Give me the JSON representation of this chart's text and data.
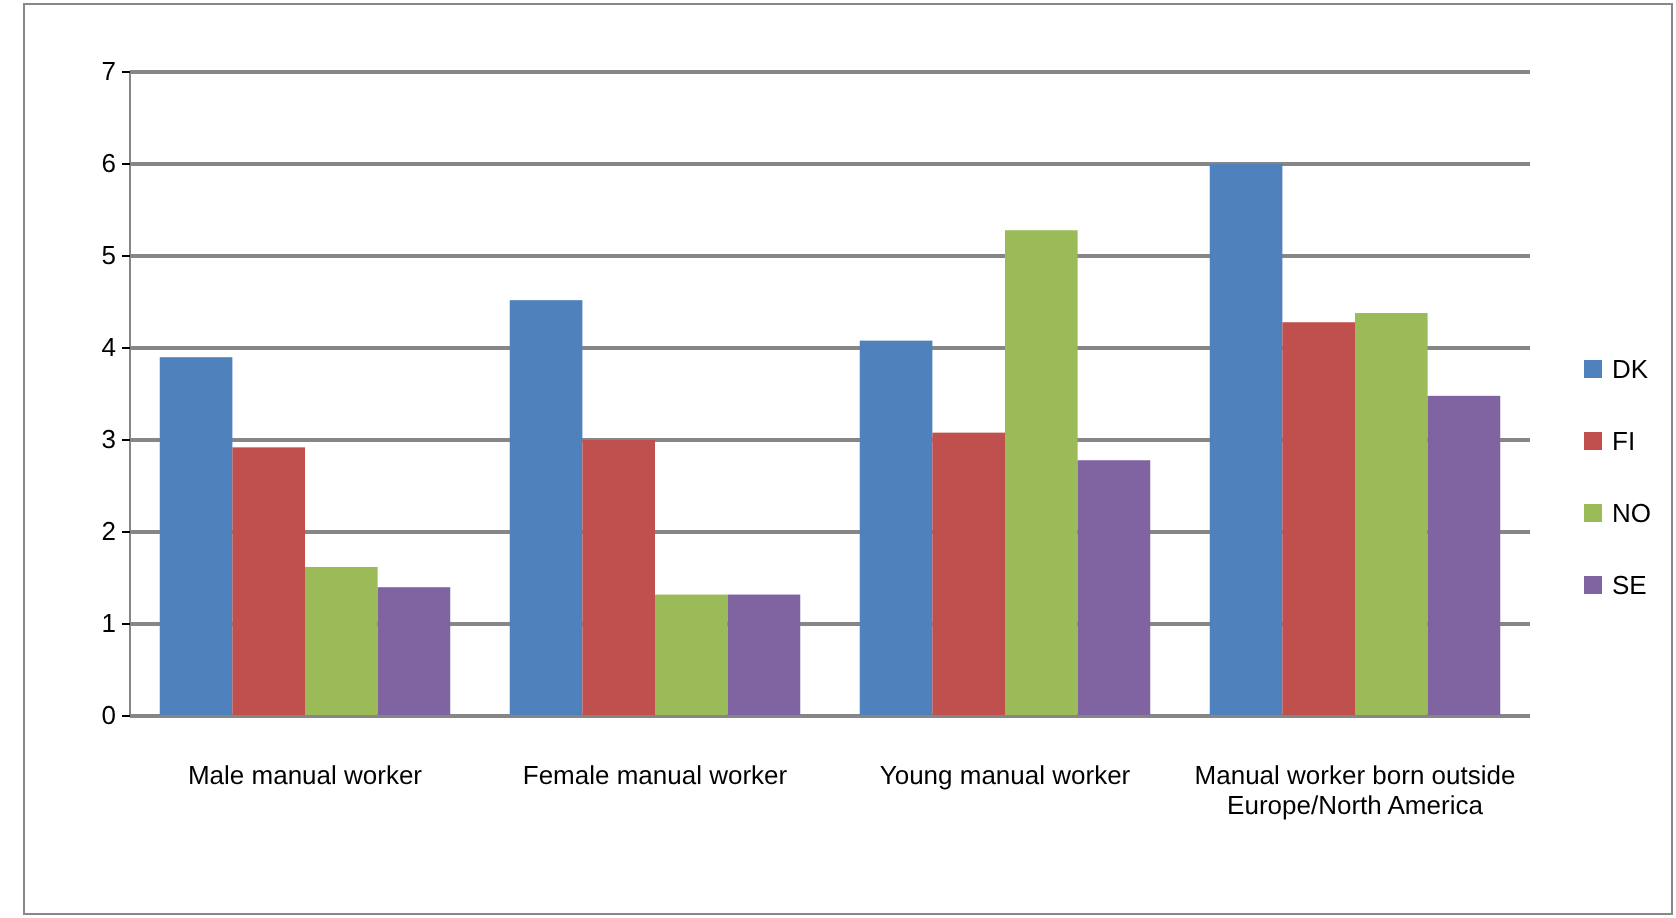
{
  "chart_data": {
    "type": "bar",
    "categories": [
      "Male manual worker",
      "Female manual worker",
      "Young manual worker",
      "Manual worker born outside Europe/North America"
    ],
    "series": [
      {
        "name": "DK",
        "color": "#4f81bd",
        "values": [
          3.9,
          4.52,
          4.08,
          6.0
        ]
      },
      {
        "name": "FI",
        "color": "#c0504d",
        "values": [
          2.92,
          3.0,
          3.08,
          4.28
        ]
      },
      {
        "name": "NO",
        "color": "#9bbb59",
        "values": [
          1.62,
          1.32,
          5.28,
          4.38
        ]
      },
      {
        "name": "SE",
        "color": "#8064a2",
        "values": [
          1.4,
          1.32,
          2.78,
          3.48
        ]
      }
    ],
    "ylim": [
      0,
      7
    ],
    "yticks": [
      0,
      1,
      2,
      3,
      4,
      5,
      6,
      7
    ],
    "grid": "y",
    "legend": "right"
  }
}
